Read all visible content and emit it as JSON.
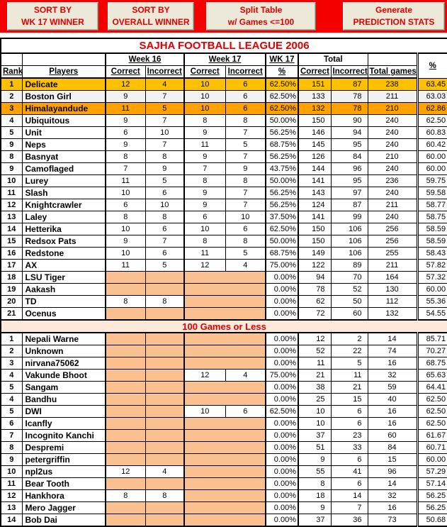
{
  "toolbar": {
    "buttons": [
      {
        "line1": "SORT BY",
        "line2": "WK 17 WINNER"
      },
      {
        "line1": "SORT BY",
        "line2": "OVERALL WINNER"
      },
      {
        "line1": "Split Table",
        "line2": "w/ Games <=100"
      },
      {
        "line1": "Generate",
        "line2": "PREDICTION STATS"
      }
    ]
  },
  "title": "SAJHA FOOTBALL LEAGUE 2006",
  "table": {
    "header": {
      "rank": "Rank",
      "players": "Players",
      "week16": "Week 16",
      "week17": "Week 17",
      "wk17": "WK 17",
      "total": "Total",
      "correct": "Correct",
      "incorrect": "Incorrect",
      "wk17_pct": "%",
      "total_games": "Total games",
      "pct": "%"
    },
    "divider": "100 Games or Less",
    "section1": [
      [
        "1",
        "Delicate",
        "12",
        "4",
        "10",
        "6",
        "62.50%",
        "151",
        "87",
        "238",
        "63.45",
        "gold"
      ],
      [
        "2",
        "Boston Girl",
        "9",
        "7",
        "10",
        "6",
        "62.50%",
        "133",
        "78",
        "211",
        "63.03",
        "gray"
      ],
      [
        "3",
        "Himalayandude",
        "11",
        "5",
        "10",
        "6",
        "62.50%",
        "132",
        "78",
        "210",
        "62.86",
        "orange"
      ],
      [
        "4",
        "Ubiquitous",
        "9",
        "7",
        "8",
        "8",
        "50.00%",
        "150",
        "90",
        "240",
        "62.50",
        ""
      ],
      [
        "5",
        "Unit",
        "6",
        "10",
        "9",
        "7",
        "56.25%",
        "146",
        "94",
        "240",
        "60.83",
        ""
      ],
      [
        "9",
        "Neps",
        "9",
        "7",
        "11",
        "5",
        "68.75%",
        "145",
        "95",
        "240",
        "60.42",
        ""
      ],
      [
        "8",
        "Basnyat",
        "8",
        "8",
        "9",
        "7",
        "56.25%",
        "126",
        "84",
        "210",
        "60.00",
        ""
      ],
      [
        "9",
        "Camoflaged",
        "7",
        "9",
        "7",
        "9",
        "43.75%",
        "144",
        "96",
        "240",
        "60.00",
        ""
      ],
      [
        "10",
        "Lurey",
        "11",
        "5",
        "8",
        "8",
        "50.00%",
        "141",
        "95",
        "236",
        "59.75",
        ""
      ],
      [
        "11",
        "Slash",
        "10",
        "6",
        "9",
        "7",
        "56.25%",
        "143",
        "97",
        "240",
        "59.58",
        ""
      ],
      [
        "12",
        "Knightcrawler",
        "6",
        "10",
        "9",
        "7",
        "56.25%",
        "124",
        "87",
        "211",
        "58.77",
        ""
      ],
      [
        "13",
        "Laley",
        "8",
        "8",
        "6",
        "10",
        "37.50%",
        "141",
        "99",
        "240",
        "58.75",
        ""
      ],
      [
        "14",
        "Hetterika",
        "10",
        "6",
        "10",
        "6",
        "62.50%",
        "150",
        "106",
        "256",
        "58.59",
        ""
      ],
      [
        "15",
        "Redsox Pats",
        "9",
        "7",
        "8",
        "8",
        "50.00%",
        "150",
        "106",
        "256",
        "58.59",
        ""
      ],
      [
        "16",
        "Redstone",
        "10",
        "6",
        "11",
        "5",
        "68.75%",
        "149",
        "106",
        "255",
        "58.43",
        ""
      ],
      [
        "17",
        "AX",
        "11",
        "5",
        "12",
        "4",
        "75.00%",
        "122",
        "89",
        "211",
        "57.82",
        ""
      ],
      [
        "18",
        "LSU Tiger",
        null,
        null,
        null,
        null,
        "0.00%",
        "94",
        "70",
        "164",
        "57.32",
        ""
      ],
      [
        "19",
        "Aakash",
        null,
        null,
        null,
        null,
        "0.00%",
        "78",
        "52",
        "130",
        "60.00",
        ""
      ],
      [
        "20",
        "TD",
        "8",
        "8",
        null,
        null,
        "0.00%",
        "62",
        "50",
        "112",
        "55.36",
        ""
      ],
      [
        "21",
        "Ocenus",
        null,
        null,
        null,
        null,
        "0.00%",
        "72",
        "60",
        "132",
        "54.55",
        ""
      ]
    ],
    "section2": [
      [
        "1",
        "Nepali Warne",
        null,
        null,
        null,
        null,
        "0.00%",
        "12",
        "2",
        "14",
        "85.71",
        ""
      ],
      [
        "2",
        "Unknown",
        null,
        null,
        null,
        null,
        "0.00%",
        "52",
        "22",
        "74",
        "70.27",
        ""
      ],
      [
        "3",
        "nirvana75062",
        null,
        null,
        null,
        null,
        "0.00%",
        "11",
        "5",
        "16",
        "68.75",
        ""
      ],
      [
        "4",
        "Vakunde Bhoot",
        null,
        null,
        "12",
        "4",
        "75.00%",
        "21",
        "11",
        "32",
        "65.63",
        ""
      ],
      [
        "5",
        "Sangam",
        null,
        null,
        null,
        null,
        "0.00%",
        "38",
        "21",
        "59",
        "64.41",
        ""
      ],
      [
        "4",
        "Bandhu",
        null,
        null,
        null,
        null,
        "0.00%",
        "25",
        "15",
        "40",
        "62.50",
        ""
      ],
      [
        "5",
        "DWI",
        null,
        null,
        "10",
        "6",
        "62.50%",
        "10",
        "6",
        "16",
        "62.50",
        ""
      ],
      [
        "6",
        "Icanfly",
        null,
        null,
        null,
        null,
        "0.00%",
        "10",
        "6",
        "16",
        "62.50",
        ""
      ],
      [
        "7",
        "Incognito Kanchi",
        null,
        null,
        null,
        null,
        "0.00%",
        "37",
        "23",
        "60",
        "61.67",
        ""
      ],
      [
        "8",
        "Despremi",
        null,
        null,
        null,
        null,
        "0.00%",
        "51",
        "33",
        "84",
        "60.71",
        ""
      ],
      [
        "9",
        "petergriffin",
        null,
        null,
        null,
        null,
        "0.00%",
        "9",
        "6",
        "15",
        "60.00",
        ""
      ],
      [
        "10",
        "npl2us",
        "12",
        "4",
        null,
        null,
        "0.00%",
        "55",
        "41",
        "96",
        "57.29",
        ""
      ],
      [
        "11",
        "Bear Tooth",
        null,
        null,
        null,
        null,
        "0.00%",
        "8",
        "6",
        "14",
        "57.14",
        ""
      ],
      [
        "12",
        "Hankhora",
        "8",
        "8",
        null,
        null,
        "0.00%",
        "18",
        "14",
        "32",
        "56.25",
        ""
      ],
      [
        "13",
        "Mero Jagger",
        null,
        null,
        null,
        null,
        "0.00%",
        "9",
        "7",
        "16",
        "56.25",
        ""
      ],
      [
        "14",
        "Bob Dai",
        null,
        null,
        null,
        null,
        "0.00%",
        "37",
        "36",
        "73",
        "50.68",
        ""
      ]
    ]
  },
  "colors": {
    "page_red": "#f40000",
    "button_bg": "#ece9d8",
    "button_text": "#e00000",
    "title_text": "#e00000",
    "row_gold": "#ffc000",
    "row_orange": "#ffa200",
    "row_gray": "#f2f2f2",
    "empty_cell_shade": "#fac090",
    "divider_bg": "#fde9d9",
    "divider_text": "#e00000"
  }
}
